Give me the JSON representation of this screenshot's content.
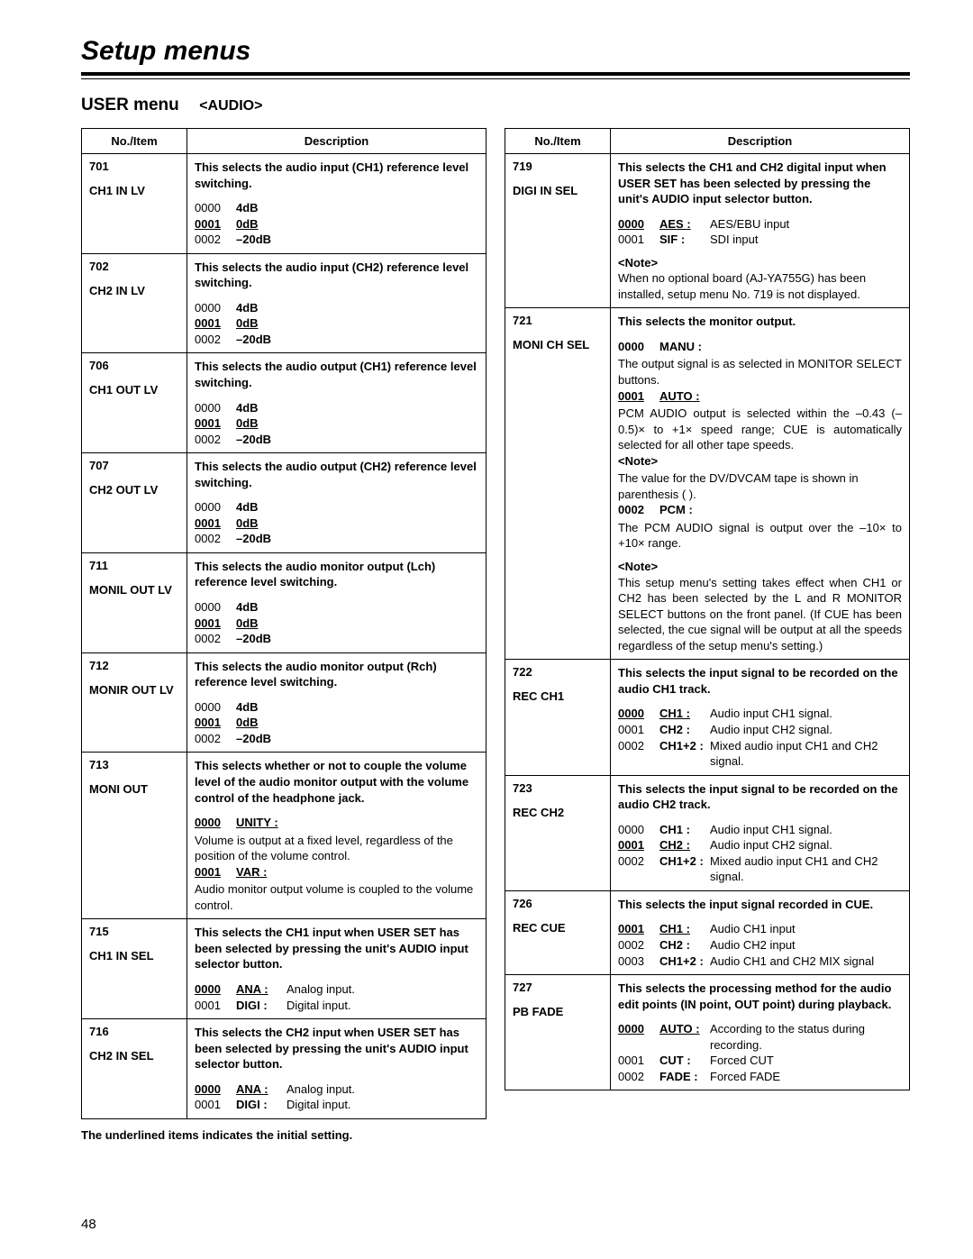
{
  "page": {
    "title": "Setup menus",
    "subtitle_main": "USER menu",
    "subtitle_tag": "<AUDIO>",
    "header_noitem": "No./Item",
    "header_desc": "Description",
    "footnote": "The underlined items indicates the initial setting.",
    "page_number": "48"
  },
  "left": [
    {
      "no": "701",
      "name": "CH1 IN LV",
      "desc": "This selects the audio input (CH1) reference level switching.",
      "opts": [
        {
          "code": "0000",
          "label": "4dB",
          "u": false
        },
        {
          "code": "0001",
          "label": "0dB",
          "u": true
        },
        {
          "code": "0002",
          "label": "–20dB",
          "u": false
        }
      ]
    },
    {
      "no": "702",
      "name": "CH2 IN LV",
      "desc": "This selects the audio input (CH2) reference level switching.",
      "opts": [
        {
          "code": "0000",
          "label": "4dB",
          "u": false
        },
        {
          "code": "0001",
          "label": "0dB",
          "u": true
        },
        {
          "code": "0002",
          "label": "–20dB",
          "u": false
        }
      ]
    },
    {
      "no": "706",
      "name": "CH1 OUT LV",
      "desc": "This selects the audio output (CH1) reference level switching.",
      "opts": [
        {
          "code": "0000",
          "label": "4dB",
          "u": false
        },
        {
          "code": "0001",
          "label": "0dB",
          "u": true
        },
        {
          "code": "0002",
          "label": "–20dB",
          "u": false
        }
      ]
    },
    {
      "no": "707",
      "name": "CH2 OUT LV",
      "desc": "This selects the audio output (CH2) reference level switching.",
      "opts": [
        {
          "code": "0000",
          "label": "4dB",
          "u": false
        },
        {
          "code": "0001",
          "label": "0dB",
          "u": true
        },
        {
          "code": "0002",
          "label": "–20dB",
          "u": false
        }
      ]
    },
    {
      "no": "711",
      "name": "MONIL OUT LV",
      "desc": "This selects the audio monitor output (Lch) reference level switching.",
      "opts": [
        {
          "code": "0000",
          "label": "4dB",
          "u": false
        },
        {
          "code": "0001",
          "label": "0dB",
          "u": true
        },
        {
          "code": "0002",
          "label": "–20dB",
          "u": false
        }
      ]
    },
    {
      "no": "712",
      "name": "MONIR OUT LV",
      "desc": "This selects the audio monitor output (Rch) reference level switching.",
      "opts": [
        {
          "code": "0000",
          "label": "4dB",
          "u": false
        },
        {
          "code": "0001",
          "label": "0dB",
          "u": true
        },
        {
          "code": "0002",
          "label": "–20dB",
          "u": false
        }
      ]
    },
    {
      "no": "713",
      "name": "MONI OUT",
      "desc": "This selects whether or not to couple the volume level of the audio monitor output with the volume control of the headphone jack.",
      "opts2": [
        {
          "code": "0000",
          "label": "UNITY :",
          "u": true,
          "text": "Volume is output at a fixed level, regardless of the position of the volume control."
        },
        {
          "code": "0001",
          "label": "VAR :",
          "u": true,
          "text": "Audio monitor output volume is coupled to the volume control."
        }
      ]
    },
    {
      "no": "715",
      "name": "CH1 IN SEL",
      "desc": "This selects the CH1 input when USER SET has been selected by pressing the unit's AUDIO input selector button.",
      "opts3": [
        {
          "code": "0000",
          "label": "ANA :",
          "u": true,
          "text": "Analog input."
        },
        {
          "code": "0001",
          "label": "DIGI :",
          "u": false,
          "text": "Digital input."
        }
      ]
    },
    {
      "no": "716",
      "name": "CH2 IN SEL",
      "desc": "This selects the CH2 input when USER SET has been selected by pressing the unit's AUDIO input selector button.",
      "opts3": [
        {
          "code": "0000",
          "label": "ANA :",
          "u": true,
          "text": "Analog input."
        },
        {
          "code": "0001",
          "label": "DIGI :",
          "u": false,
          "text": "Digital input."
        }
      ]
    }
  ],
  "right": [
    {
      "no": "719",
      "name": "DIGI IN SEL",
      "desc": "This selects the CH1 and CH2 digital input when USER SET has been selected by pressing the unit's AUDIO input selector button.",
      "opts3": [
        {
          "code": "0000",
          "label": "AES :",
          "u": true,
          "text": "AES/EBU input"
        },
        {
          "code": "0001",
          "label": "SIF :",
          "u": false,
          "text": "SDI input"
        }
      ],
      "note_label": "<Note>",
      "note": "When no optional board (AJ-YA755G) has been installed, setup menu No. 719 is not displayed."
    },
    {
      "no": "721",
      "name": "MONI CH SEL",
      "desc": "This selects  the monitor output.",
      "m721": {
        "o0_code": "0000",
        "o0_label": "MANU :",
        "o0_text": "The output signal is as selected in MONITOR SELECT buttons.",
        "o1_code": "0001",
        "o1_label": "AUTO :",
        "o1_text": "PCM AUDIO output is selected within the –0.43 (–0.5)× to +1× speed range; CUE is automatically selected for all other tape speeds.",
        "o1_note_label": "<Note>",
        "o1_note": "The value for the DV/DVCAM tape is shown in parenthesis (   ).",
        "o2_code": "0002",
        "o2_label": "PCM :",
        "o2_text": "The PCM AUDIO signal is output over the –10× to +10× range.",
        "note_label": "<Note>",
        "note": "This setup menu's setting takes effect when CH1 or CH2 has been selected by the L and R MONITOR SELECT buttons on the front panel. (If CUE has been selected, the cue signal will be output at all the speeds regardless of the setup menu's setting.)"
      }
    },
    {
      "no": "722",
      "name": "REC CH1",
      "desc": "This selects the input signal to be recorded on the audio CH1 track.",
      "opts3": [
        {
          "code": "0000",
          "label": "CH1 :",
          "u": true,
          "text": "Audio input CH1 signal."
        },
        {
          "code": "0001",
          "label": "CH2 :",
          "u": false,
          "text": "Audio input CH2 signal."
        },
        {
          "code": "0002",
          "label": "CH1+2 :",
          "u": false,
          "text": "Mixed audio input CH1 and CH2 signal."
        }
      ]
    },
    {
      "no": "723",
      "name": "REC CH2",
      "desc": "This selects the input signal to be recorded on the audio CH2 track.",
      "opts3": [
        {
          "code": "0000",
          "label": "CH1 :",
          "u": false,
          "text": "Audio input CH1 signal."
        },
        {
          "code": "0001",
          "label": "CH2 :",
          "u": true,
          "text": "Audio input CH2 signal."
        },
        {
          "code": "0002",
          "label": "CH1+2 :",
          "u": false,
          "text": "Mixed audio input CH1 and CH2 signal."
        }
      ]
    },
    {
      "no": "726",
      "name": "REC CUE",
      "desc": "This selects the input signal recorded in CUE.",
      "opts3": [
        {
          "code": "0001",
          "label": "CH1 :",
          "u": true,
          "text": "Audio CH1 input"
        },
        {
          "code": "0002",
          "label": "CH2 :",
          "u": false,
          "text": "Audio CH2 input"
        },
        {
          "code": "0003",
          "label": "CH1+2 :",
          "u": false,
          "text": "Audio CH1 and CH2 MIX signal"
        }
      ]
    },
    {
      "no": "727",
      "name": "PB FADE",
      "desc": "This selects the processing method for the audio edit points (IN point, OUT point) during playback.",
      "opts3": [
        {
          "code": "0000",
          "label": "AUTO :",
          "u": true,
          "text": "According to the status during recording."
        },
        {
          "code": "0001",
          "label": "CUT :",
          "u": false,
          "text": "Forced CUT"
        },
        {
          "code": "0002",
          "label": "FADE :",
          "u": false,
          "text": "Forced FADE"
        }
      ]
    }
  ]
}
